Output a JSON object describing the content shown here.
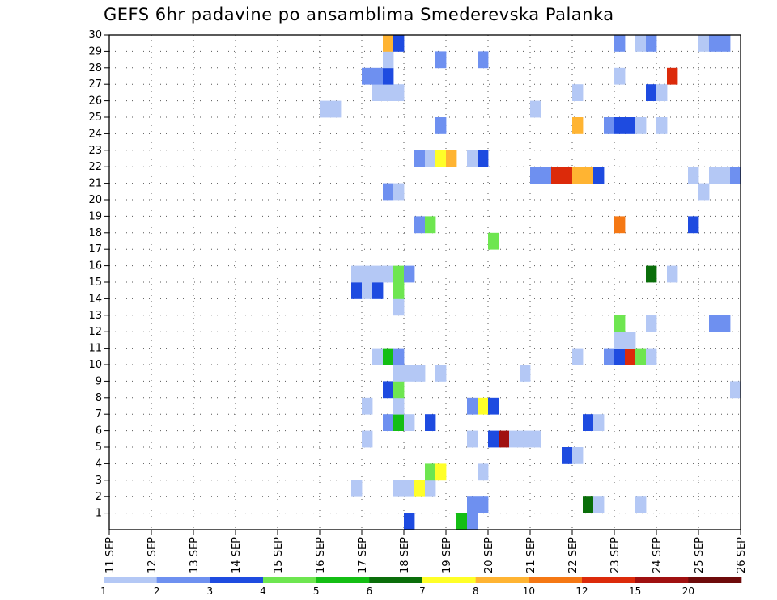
{
  "chart_data": {
    "type": "heatmap",
    "title": "GEFS 6hr padavine po ansamblima Smederevska Palanka",
    "xlabel": "",
    "ylabel": "",
    "x_ticks": [
      "11 SEP",
      "12 SEP",
      "13 SEP",
      "14 SEP",
      "15 SEP",
      "16 SEP",
      "17 SEP",
      "18 SEP",
      "19 SEP",
      "20 SEP",
      "21 SEP",
      "22 SEP",
      "23 SEP",
      "24 SEP",
      "25 SEP",
      "26 SEP"
    ],
    "xlim": [
      0,
      60
    ],
    "x_unit": "6-hour steps from 11 SEP 00Z",
    "y_ticks": [
      1,
      2,
      3,
      4,
      5,
      6,
      7,
      8,
      9,
      10,
      11,
      12,
      13,
      14,
      15,
      16,
      17,
      18,
      19,
      20,
      21,
      22,
      23,
      24,
      25,
      26,
      27,
      28,
      29,
      30
    ],
    "ylim": [
      0,
      30
    ],
    "grid": true,
    "color_scale": {
      "colors": [
        "#b4c8f5",
        "#6e90f0",
        "#1e4be0",
        "#6ee650",
        "#14be14",
        "#0a6e0a",
        "#ffff28",
        "#ffb432",
        "#f57814",
        "#dc2a0a",
        "#a01010",
        "#6e0a0a"
      ],
      "labels": [
        "1",
        "2",
        "3",
        "4",
        "5",
        "6",
        "7",
        "8",
        "10",
        "12",
        "15",
        "20"
      ]
    },
    "cells": [
      {
        "x": 28,
        "y": 0,
        "level": 2
      },
      {
        "x": 33,
        "y": 0,
        "level": 4
      },
      {
        "x": 34,
        "y": 0,
        "level": 1
      },
      {
        "x": 34,
        "y": 1,
        "level": 1
      },
      {
        "x": 35,
        "y": 1,
        "level": 1
      },
      {
        "x": 45,
        "y": 1,
        "level": 5
      },
      {
        "x": 46,
        "y": 1,
        "level": 0
      },
      {
        "x": 50,
        "y": 1,
        "level": 0
      },
      {
        "x": 23,
        "y": 2,
        "level": 0
      },
      {
        "x": 27,
        "y": 2,
        "level": 0
      },
      {
        "x": 28,
        "y": 2,
        "level": 0
      },
      {
        "x": 29,
        "y": 2,
        "level": 6
      },
      {
        "x": 30,
        "y": 2,
        "level": 0
      },
      {
        "x": 30,
        "y": 3,
        "level": 3
      },
      {
        "x": 31,
        "y": 3,
        "level": 6
      },
      {
        "x": 35,
        "y": 3,
        "level": 0
      },
      {
        "x": 43,
        "y": 4,
        "level": 2
      },
      {
        "x": 44,
        "y": 4,
        "level": 0
      },
      {
        "x": 24,
        "y": 5,
        "level": 0
      },
      {
        "x": 34,
        "y": 5,
        "level": 0
      },
      {
        "x": 36,
        "y": 5,
        "level": 2
      },
      {
        "x": 37,
        "y": 5,
        "level": 10
      },
      {
        "x": 38,
        "y": 5,
        "level": 0
      },
      {
        "x": 39,
        "y": 5,
        "level": 0
      },
      {
        "x": 40,
        "y": 5,
        "level": 0
      },
      {
        "x": 26,
        "y": 6,
        "level": 1
      },
      {
        "x": 27,
        "y": 6,
        "level": 4
      },
      {
        "x": 28,
        "y": 6,
        "level": 0
      },
      {
        "x": 30,
        "y": 6,
        "level": 2
      },
      {
        "x": 45,
        "y": 6,
        "level": 2
      },
      {
        "x": 46,
        "y": 6,
        "level": 0
      },
      {
        "x": 24,
        "y": 7,
        "level": 0
      },
      {
        "x": 27,
        "y": 7,
        "level": 0
      },
      {
        "x": 34,
        "y": 7,
        "level": 1
      },
      {
        "x": 35,
        "y": 7,
        "level": 6
      },
      {
        "x": 36,
        "y": 7,
        "level": 2
      },
      {
        "x": 26,
        "y": 8,
        "level": 2
      },
      {
        "x": 27,
        "y": 8,
        "level": 3
      },
      {
        "x": 59,
        "y": 8,
        "level": 0
      },
      {
        "x": 27,
        "y": 9,
        "level": 0
      },
      {
        "x": 28,
        "y": 9,
        "level": 0
      },
      {
        "x": 29,
        "y": 9,
        "level": 0
      },
      {
        "x": 31,
        "y": 9,
        "level": 0
      },
      {
        "x": 39,
        "y": 9,
        "level": 0
      },
      {
        "x": 25,
        "y": 10,
        "level": 0
      },
      {
        "x": 26,
        "y": 10,
        "level": 4
      },
      {
        "x": 27,
        "y": 10,
        "level": 1
      },
      {
        "x": 44,
        "y": 10,
        "level": 0
      },
      {
        "x": 47,
        "y": 10,
        "level": 1
      },
      {
        "x": 48,
        "y": 10,
        "level": 2
      },
      {
        "x": 49,
        "y": 10,
        "level": 9
      },
      {
        "x": 50,
        "y": 10,
        "level": 3
      },
      {
        "x": 51,
        "y": 10,
        "level": 0
      },
      {
        "x": 48,
        "y": 11,
        "level": 0
      },
      {
        "x": 49,
        "y": 11,
        "level": 0
      },
      {
        "x": 48,
        "y": 12,
        "level": 3
      },
      {
        "x": 51,
        "y": 12,
        "level": 0
      },
      {
        "x": 57,
        "y": 12,
        "level": 1
      },
      {
        "x": 58,
        "y": 12,
        "level": 1
      },
      {
        "x": 27,
        "y": 13,
        "level": 0
      },
      {
        "x": 23,
        "y": 14,
        "level": 2
      },
      {
        "x": 24,
        "y": 14,
        "level": 0
      },
      {
        "x": 25,
        "y": 14,
        "level": 2
      },
      {
        "x": 27,
        "y": 14,
        "level": 3
      },
      {
        "x": 23,
        "y": 15,
        "level": 0
      },
      {
        "x": 24,
        "y": 15,
        "level": 0
      },
      {
        "x": 25,
        "y": 15,
        "level": 0
      },
      {
        "x": 26,
        "y": 15,
        "level": 0
      },
      {
        "x": 27,
        "y": 15,
        "level": 3
      },
      {
        "x": 28,
        "y": 15,
        "level": 1
      },
      {
        "x": 51,
        "y": 15,
        "level": 5
      },
      {
        "x": 53,
        "y": 15,
        "level": 0
      },
      {
        "x": 36,
        "y": 17,
        "level": 3
      },
      {
        "x": 29,
        "y": 18,
        "level": 1
      },
      {
        "x": 30,
        "y": 18,
        "level": 3
      },
      {
        "x": 48,
        "y": 18,
        "level": 8
      },
      {
        "x": 55,
        "y": 18,
        "level": 2
      },
      {
        "x": 26,
        "y": 20,
        "level": 1
      },
      {
        "x": 27,
        "y": 20,
        "level": 0
      },
      {
        "x": 56,
        "y": 20,
        "level": 0
      },
      {
        "x": 40,
        "y": 21,
        "level": 1
      },
      {
        "x": 41,
        "y": 21,
        "level": 1
      },
      {
        "x": 42,
        "y": 21,
        "level": 9
      },
      {
        "x": 43,
        "y": 21,
        "level": 9
      },
      {
        "x": 44,
        "y": 21,
        "level": 7
      },
      {
        "x": 45,
        "y": 21,
        "level": 7
      },
      {
        "x": 46,
        "y": 21,
        "level": 2
      },
      {
        "x": 55,
        "y": 21,
        "level": 0
      },
      {
        "x": 57,
        "y": 21,
        "level": 0
      },
      {
        "x": 58,
        "y": 21,
        "level": 0
      },
      {
        "x": 59,
        "y": 21,
        "level": 1
      },
      {
        "x": 29,
        "y": 22,
        "level": 1
      },
      {
        "x": 30,
        "y": 22,
        "level": 0
      },
      {
        "x": 31,
        "y": 22,
        "level": 6
      },
      {
        "x": 32,
        "y": 22,
        "level": 7
      },
      {
        "x": 34,
        "y": 22,
        "level": 0
      },
      {
        "x": 35,
        "y": 22,
        "level": 2
      },
      {
        "x": 31,
        "y": 24,
        "level": 1
      },
      {
        "x": 44,
        "y": 24,
        "level": 7
      },
      {
        "x": 47,
        "y": 24,
        "level": 1
      },
      {
        "x": 48,
        "y": 24,
        "level": 2
      },
      {
        "x": 49,
        "y": 24,
        "level": 2
      },
      {
        "x": 50,
        "y": 24,
        "level": 0
      },
      {
        "x": 52,
        "y": 24,
        "level": 0
      },
      {
        "x": 20,
        "y": 25,
        "level": 0
      },
      {
        "x": 21,
        "y": 25,
        "level": 0
      },
      {
        "x": 40,
        "y": 25,
        "level": 0
      },
      {
        "x": 25,
        "y": 26,
        "level": 0
      },
      {
        "x": 26,
        "y": 26,
        "level": 0
      },
      {
        "x": 27,
        "y": 26,
        "level": 0
      },
      {
        "x": 44,
        "y": 26,
        "level": 0
      },
      {
        "x": 51,
        "y": 26,
        "level": 2
      },
      {
        "x": 52,
        "y": 26,
        "level": 0
      },
      {
        "x": 24,
        "y": 27,
        "level": 1
      },
      {
        "x": 25,
        "y": 27,
        "level": 1
      },
      {
        "x": 26,
        "y": 27,
        "level": 2
      },
      {
        "x": 48,
        "y": 27,
        "level": 0
      },
      {
        "x": 53,
        "y": 27,
        "level": 9
      },
      {
        "x": 26,
        "y": 28,
        "level": 0
      },
      {
        "x": 31,
        "y": 28,
        "level": 1
      },
      {
        "x": 35,
        "y": 28,
        "level": 1
      },
      {
        "x": 26,
        "y": 29,
        "level": 7
      },
      {
        "x": 27,
        "y": 29,
        "level": 2
      },
      {
        "x": 48,
        "y": 29,
        "level": 1
      },
      {
        "x": 50,
        "y": 29,
        "level": 0
      },
      {
        "x": 51,
        "y": 29,
        "level": 1
      },
      {
        "x": 56,
        "y": 29,
        "level": 0
      },
      {
        "x": 57,
        "y": 29,
        "level": 1
      },
      {
        "x": 58,
        "y": 29,
        "level": 1
      }
    ]
  }
}
